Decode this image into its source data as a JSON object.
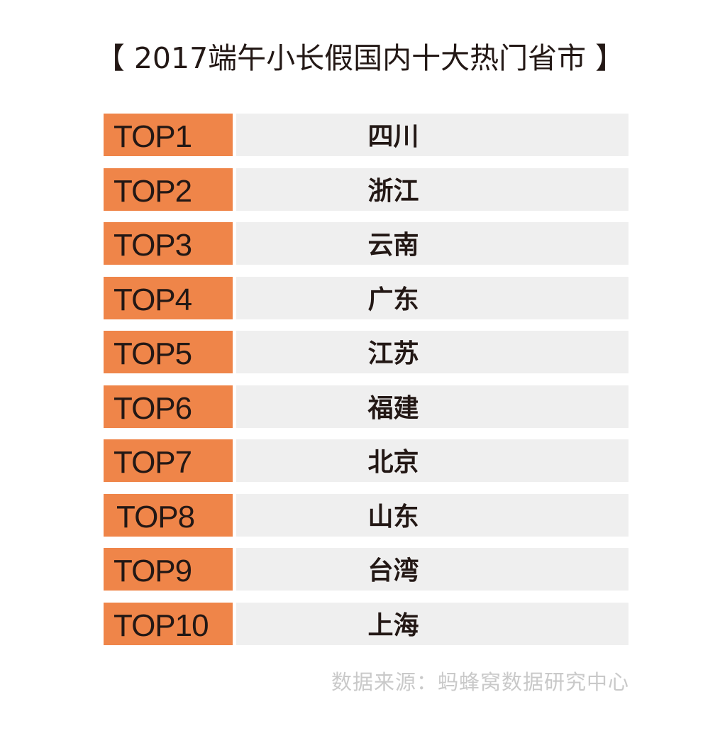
{
  "title": "【 2017端午小长假国内十大热门省市 】",
  "ranking": [
    {
      "rank": "TOP1",
      "province": "四川"
    },
    {
      "rank": "TOP2",
      "province": "浙江"
    },
    {
      "rank": "TOP3",
      "province": "云南"
    },
    {
      "rank": "TOP4",
      "province": "广东"
    },
    {
      "rank": "TOP5",
      "province": "江苏"
    },
    {
      "rank": "TOP6",
      "province": "福建"
    },
    {
      "rank": "TOP7",
      "province": "北京"
    },
    {
      "rank": "TOP8",
      "province": "山东"
    },
    {
      "rank": "TOP9",
      "province": "台湾"
    },
    {
      "rank": "TOP10",
      "province": "上海"
    }
  ],
  "source": "数据来源：蚂蜂窝数据研究中心",
  "colors": {
    "rank_background": "#ef8549",
    "row_background": "#efefef",
    "text": "#231815",
    "source_text": "#c9c9c9"
  }
}
